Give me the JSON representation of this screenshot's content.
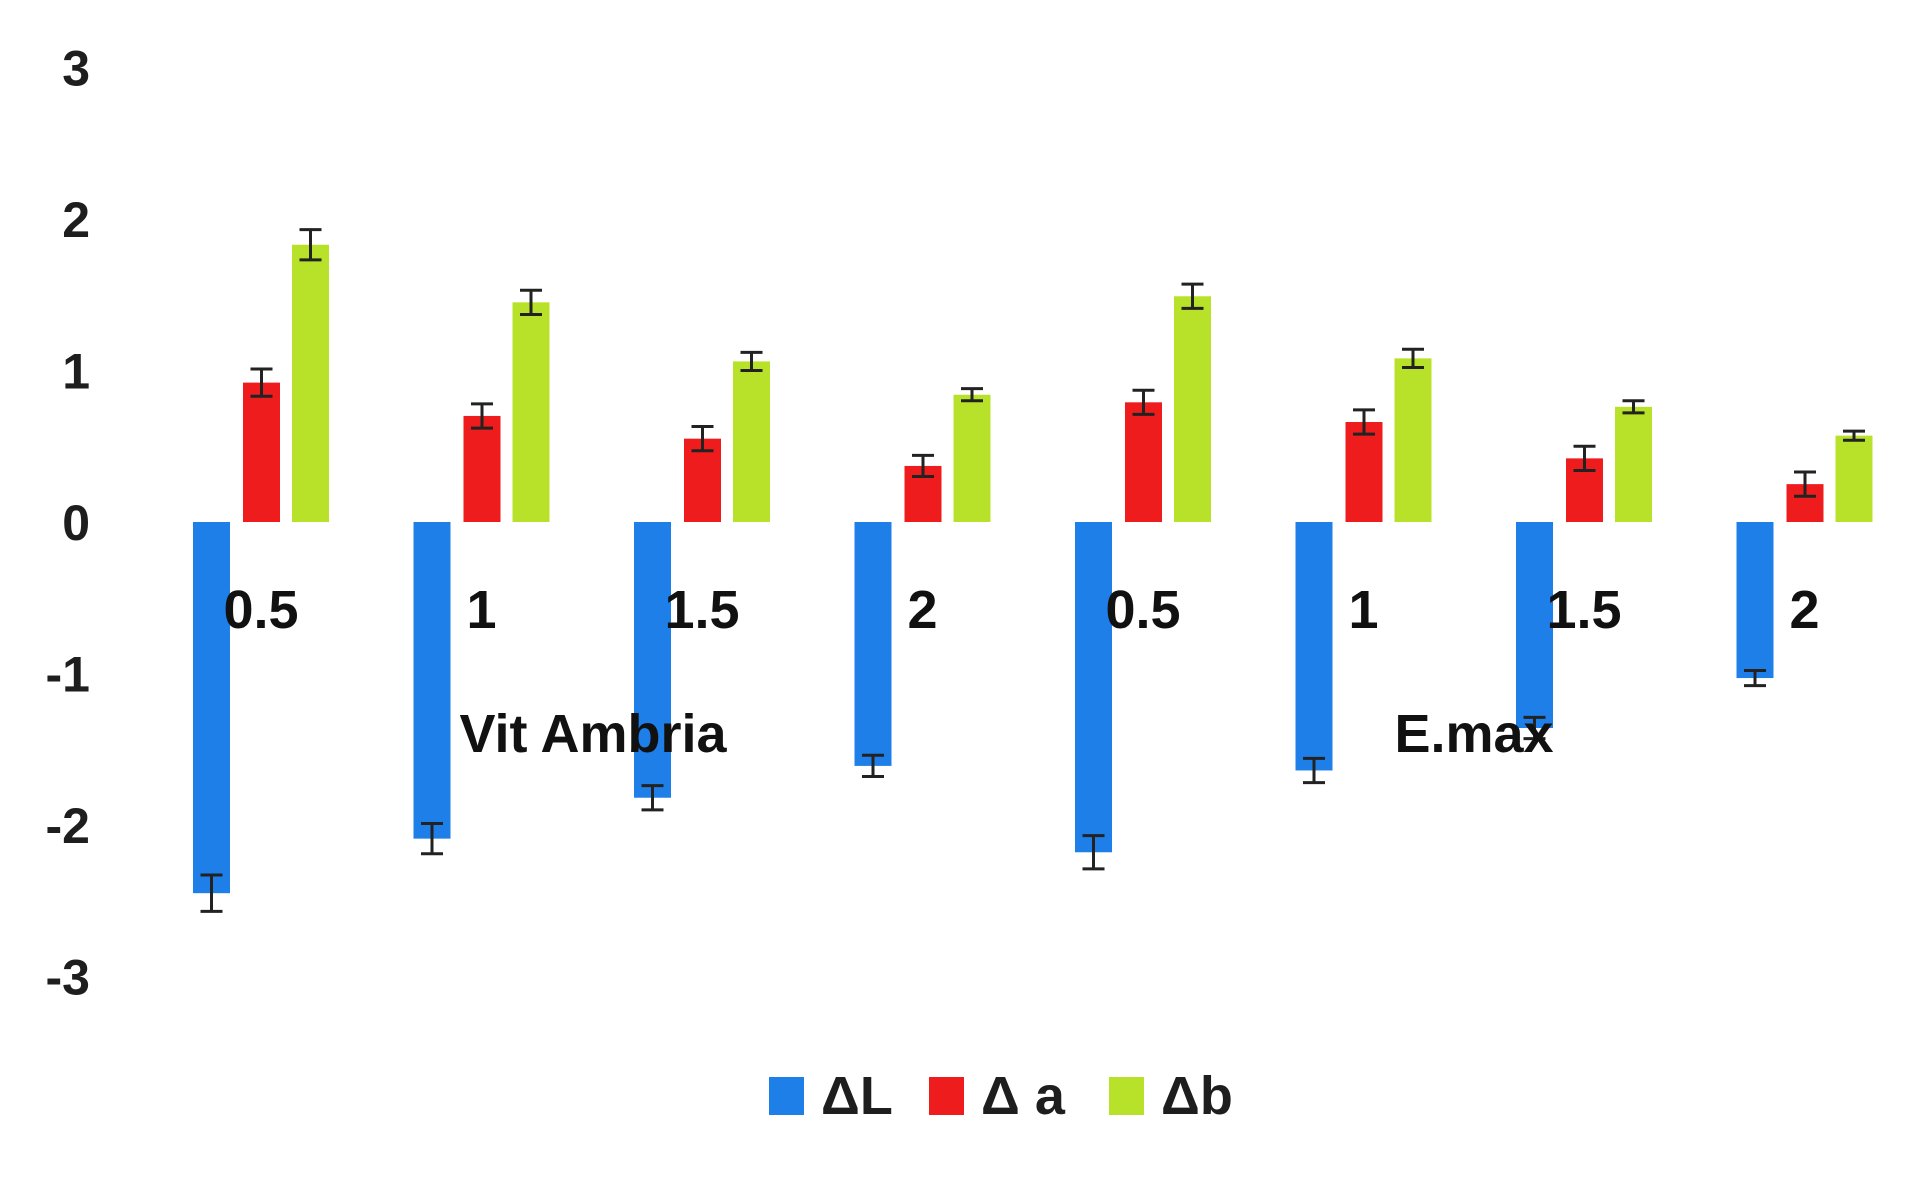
{
  "chart_data": {
    "type": "bar",
    "title": "",
    "xlabel": "",
    "ylabel": "",
    "ylim": [
      -3,
      3
    ],
    "yticks": [
      -3,
      -2,
      -1,
      0,
      1,
      2,
      3
    ],
    "grid": false,
    "legend_position": "bottom",
    "groups": [
      {
        "label": "Vit Ambria",
        "categories": [
          "0.5",
          "1",
          "1.5",
          "2"
        ]
      },
      {
        "label": "E.max",
        "categories": [
          "0.5",
          "1",
          "1.5",
          "2"
        ]
      }
    ],
    "categories": [
      "0.5",
      "1",
      "1.5",
      "2",
      "0.5",
      "1",
      "1.5",
      "2"
    ],
    "series": [
      {
        "name": "ΔL",
        "color": "#1f7fe8",
        "values": [
          -2.45,
          -2.09,
          -1.82,
          -1.61,
          -2.18,
          -1.64,
          -1.36,
          -1.03
        ],
        "errors": [
          0.12,
          0.1,
          0.08,
          0.07,
          0.11,
          0.08,
          0.07,
          0.05
        ]
      },
      {
        "name": "Δ a",
        "color": "#ee1c1c",
        "values": [
          0.92,
          0.7,
          0.55,
          0.37,
          0.79,
          0.66,
          0.42,
          0.25
        ],
        "errors": [
          0.09,
          0.08,
          0.08,
          0.07,
          0.08,
          0.08,
          0.08,
          0.08
        ]
      },
      {
        "name": "Δb",
        "color": "#b8e22a",
        "values": [
          1.83,
          1.45,
          1.06,
          0.84,
          1.49,
          1.08,
          0.76,
          0.57
        ],
        "errors": [
          0.1,
          0.08,
          0.06,
          0.04,
          0.08,
          0.06,
          0.04,
          0.03
        ]
      }
    ]
  }
}
